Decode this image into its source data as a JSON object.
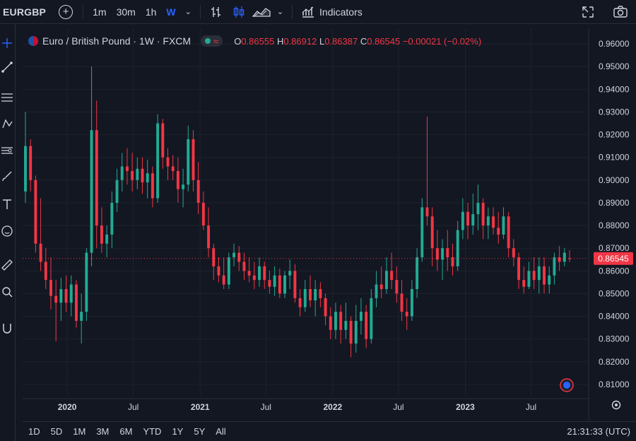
{
  "toolbar": {
    "symbol": "EURGBP",
    "timeframes": [
      "1m",
      "30m",
      "1h",
      "W"
    ],
    "active_timeframe": "W",
    "indicators_label": "Indicators",
    "icons": [
      "add-symbol-icon",
      "bar-style-icon",
      "candles-icon",
      "area-icon",
      "indicators-icon",
      "snapshot-icon",
      "camera-icon"
    ]
  },
  "left_toolbar": {
    "icons": [
      "crosshair-icon",
      "trendline-icon",
      "fib-icon",
      "pattern-icon",
      "forecast-icon",
      "brush-icon",
      "text-icon",
      "emoji-icon",
      "ruler-icon",
      "zoom-icon",
      "magnet-icon"
    ]
  },
  "legend": {
    "title": "Euro / British Pound · 1W · FXCM",
    "o_label": "O",
    "o": "0.86555",
    "h_label": "H",
    "h": "0.86912",
    "l_label": "L",
    "l": "0.86387",
    "c_label": "C",
    "c": "0.86545",
    "change": "−0.00021 (−0.02%)"
  },
  "bottom": {
    "ranges": [
      "1D",
      "5D",
      "1M",
      "3M",
      "6M",
      "YTD",
      "1Y",
      "5Y",
      "All"
    ],
    "clock": "21:31:33 (UTC)"
  },
  "colors": {
    "background": "#131722",
    "up": "#22ab94",
    "down": "#f23645",
    "grid": "#1e222d",
    "text": "#d1d4dc"
  },
  "chart_data": {
    "type": "candlestick",
    "ylim": [
      0.805,
      0.965
    ],
    "y_ticks": [
      0.81,
      0.82,
      0.83,
      0.84,
      0.85,
      0.86,
      0.87,
      0.88,
      0.89,
      0.9,
      0.91,
      0.92,
      0.93,
      0.94,
      0.95,
      0.96
    ],
    "y_tick_labels": [
      "0.81000",
      "0.82000",
      "0.83000",
      "0.84000",
      "0.85000",
      "0.86000",
      "0.87000",
      "0.88000",
      "0.89000",
      "0.90000",
      "0.91000",
      "0.92000",
      "0.93000",
      "0.94000",
      "0.95000",
      "0.96000"
    ],
    "x_range": [
      "2019-09-08",
      "2023-10-15"
    ],
    "x_ticks": [
      {
        "label": "2020",
        "date": "2020-01-01"
      },
      {
        "label": "Jul",
        "date": "2020-07-01"
      },
      {
        "label": "2021",
        "date": "2021-01-01"
      },
      {
        "label": "Jul",
        "date": "2021-07-01"
      },
      {
        "label": "2022",
        "date": "2022-01-01"
      },
      {
        "label": "Jul",
        "date": "2022-07-01"
      },
      {
        "label": "2023",
        "date": "2023-01-01"
      },
      {
        "label": "Jul",
        "date": "2023-07-01"
      }
    ],
    "last_price": 0.86545,
    "last_price_label": "0.86545",
    "candles": [
      {
        "d": "2019-09-08",
        "o": 0.895,
        "h": 0.93,
        "l": 0.89,
        "c": 0.915
      },
      {
        "d": "2019-09-22",
        "o": 0.915,
        "h": 0.918,
        "l": 0.895,
        "c": 0.9
      },
      {
        "d": "2019-10-06",
        "o": 0.9,
        "h": 0.902,
        "l": 0.868,
        "c": 0.872
      },
      {
        "d": "2019-10-20",
        "o": 0.872,
        "h": 0.892,
        "l": 0.86,
        "c": 0.864
      },
      {
        "d": "2019-11-03",
        "o": 0.864,
        "h": 0.87,
        "l": 0.852,
        "c": 0.856
      },
      {
        "d": "2019-11-17",
        "o": 0.856,
        "h": 0.866,
        "l": 0.843,
        "c": 0.849
      },
      {
        "d": "2019-12-01",
        "o": 0.849,
        "h": 0.856,
        "l": 0.829,
        "c": 0.846
      },
      {
        "d": "2019-12-15",
        "o": 0.846,
        "h": 0.857,
        "l": 0.838,
        "c": 0.852
      },
      {
        "d": "2019-12-29",
        "o": 0.852,
        "h": 0.858,
        "l": 0.842,
        "c": 0.846
      },
      {
        "d": "2020-01-12",
        "o": 0.846,
        "h": 0.858,
        "l": 0.84,
        "c": 0.854
      },
      {
        "d": "2020-01-26",
        "o": 0.854,
        "h": 0.856,
        "l": 0.835,
        "c": 0.838
      },
      {
        "d": "2020-02-09",
        "o": 0.838,
        "h": 0.85,
        "l": 0.828,
        "c": 0.842
      },
      {
        "d": "2020-02-23",
        "o": 0.842,
        "h": 0.87,
        "l": 0.838,
        "c": 0.868
      },
      {
        "d": "2020-03-08",
        "o": 0.868,
        "h": 0.95,
        "l": 0.862,
        "c": 0.922
      },
      {
        "d": "2020-03-22",
        "o": 0.922,
        "h": 0.935,
        "l": 0.87,
        "c": 0.88
      },
      {
        "d": "2020-04-05",
        "o": 0.88,
        "h": 0.888,
        "l": 0.868,
        "c": 0.872
      },
      {
        "d": "2020-04-19",
        "o": 0.872,
        "h": 0.88,
        "l": 0.866,
        "c": 0.876
      },
      {
        "d": "2020-05-03",
        "o": 0.876,
        "h": 0.895,
        "l": 0.87,
        "c": 0.89
      },
      {
        "d": "2020-05-17",
        "o": 0.89,
        "h": 0.905,
        "l": 0.886,
        "c": 0.9
      },
      {
        "d": "2020-05-31",
        "o": 0.9,
        "h": 0.912,
        "l": 0.895,
        "c": 0.906
      },
      {
        "d": "2020-06-14",
        "o": 0.906,
        "h": 0.914,
        "l": 0.898,
        "c": 0.904
      },
      {
        "d": "2020-06-28",
        "o": 0.904,
        "h": 0.912,
        "l": 0.895,
        "c": 0.9
      },
      {
        "d": "2020-07-12",
        "o": 0.9,
        "h": 0.91,
        "l": 0.896,
        "c": 0.905
      },
      {
        "d": "2020-07-26",
        "o": 0.905,
        "h": 0.91,
        "l": 0.894,
        "c": 0.899
      },
      {
        "d": "2020-08-09",
        "o": 0.899,
        "h": 0.909,
        "l": 0.892,
        "c": 0.903
      },
      {
        "d": "2020-08-23",
        "o": 0.903,
        "h": 0.906,
        "l": 0.888,
        "c": 0.892
      },
      {
        "d": "2020-09-06",
        "o": 0.892,
        "h": 0.929,
        "l": 0.89,
        "c": 0.925
      },
      {
        "d": "2020-09-20",
        "o": 0.925,
        "h": 0.927,
        "l": 0.905,
        "c": 0.91
      },
      {
        "d": "2020-10-04",
        "o": 0.91,
        "h": 0.914,
        "l": 0.9,
        "c": 0.906
      },
      {
        "d": "2020-10-18",
        "o": 0.906,
        "h": 0.911,
        "l": 0.9,
        "c": 0.904
      },
      {
        "d": "2020-11-01",
        "o": 0.904,
        "h": 0.91,
        "l": 0.89,
        "c": 0.896
      },
      {
        "d": "2020-11-15",
        "o": 0.896,
        "h": 0.905,
        "l": 0.888,
        "c": 0.898
      },
      {
        "d": "2020-11-29",
        "o": 0.898,
        "h": 0.924,
        "l": 0.895,
        "c": 0.918
      },
      {
        "d": "2020-12-13",
        "o": 0.918,
        "h": 0.922,
        "l": 0.895,
        "c": 0.9
      },
      {
        "d": "2020-12-27",
        "o": 0.9,
        "h": 0.908,
        "l": 0.885,
        "c": 0.89
      },
      {
        "d": "2021-01-10",
        "o": 0.89,
        "h": 0.895,
        "l": 0.878,
        "c": 0.88
      },
      {
        "d": "2021-01-24",
        "o": 0.88,
        "h": 0.888,
        "l": 0.866,
        "c": 0.87
      },
      {
        "d": "2021-02-07",
        "o": 0.87,
        "h": 0.872,
        "l": 0.856,
        "c": 0.862
      },
      {
        "d": "2021-02-21",
        "o": 0.862,
        "h": 0.866,
        "l": 0.855,
        "c": 0.858
      },
      {
        "d": "2021-03-07",
        "o": 0.858,
        "h": 0.866,
        "l": 0.852,
        "c": 0.854
      },
      {
        "d": "2021-03-21",
        "o": 0.854,
        "h": 0.868,
        "l": 0.852,
        "c": 0.866
      },
      {
        "d": "2021-04-04",
        "o": 0.866,
        "h": 0.872,
        "l": 0.862,
        "c": 0.868
      },
      {
        "d": "2021-04-18",
        "o": 0.868,
        "h": 0.871,
        "l": 0.86,
        "c": 0.864
      },
      {
        "d": "2021-05-02",
        "o": 0.864,
        "h": 0.868,
        "l": 0.856,
        "c": 0.86
      },
      {
        "d": "2021-05-16",
        "o": 0.86,
        "h": 0.866,
        "l": 0.855,
        "c": 0.858
      },
      {
        "d": "2021-05-30",
        "o": 0.858,
        "h": 0.864,
        "l": 0.852,
        "c": 0.856
      },
      {
        "d": "2021-06-13",
        "o": 0.856,
        "h": 0.866,
        "l": 0.853,
        "c": 0.862
      },
      {
        "d": "2021-06-27",
        "o": 0.862,
        "h": 0.864,
        "l": 0.852,
        "c": 0.856
      },
      {
        "d": "2021-07-11",
        "o": 0.856,
        "h": 0.86,
        "l": 0.85,
        "c": 0.853
      },
      {
        "d": "2021-07-25",
        "o": 0.853,
        "h": 0.862,
        "l": 0.849,
        "c": 0.858
      },
      {
        "d": "2021-08-08",
        "o": 0.858,
        "h": 0.861,
        "l": 0.848,
        "c": 0.85
      },
      {
        "d": "2021-08-22",
        "o": 0.85,
        "h": 0.86,
        "l": 0.848,
        "c": 0.858
      },
      {
        "d": "2021-09-05",
        "o": 0.858,
        "h": 0.865,
        "l": 0.852,
        "c": 0.86
      },
      {
        "d": "2021-09-19",
        "o": 0.86,
        "h": 0.863,
        "l": 0.846,
        "c": 0.848
      },
      {
        "d": "2021-10-03",
        "o": 0.848,
        "h": 0.852,
        "l": 0.84,
        "c": 0.844
      },
      {
        "d": "2021-10-17",
        "o": 0.844,
        "h": 0.856,
        "l": 0.842,
        "c": 0.852
      },
      {
        "d": "2021-10-31",
        "o": 0.852,
        "h": 0.858,
        "l": 0.844,
        "c": 0.847
      },
      {
        "d": "2021-11-14",
        "o": 0.847,
        "h": 0.856,
        "l": 0.84,
        "c": 0.852
      },
      {
        "d": "2021-11-28",
        "o": 0.852,
        "h": 0.855,
        "l": 0.844,
        "c": 0.848
      },
      {
        "d": "2021-12-12",
        "o": 0.848,
        "h": 0.85,
        "l": 0.836,
        "c": 0.84
      },
      {
        "d": "2021-12-26",
        "o": 0.84,
        "h": 0.844,
        "l": 0.83,
        "c": 0.834
      },
      {
        "d": "2022-01-09",
        "o": 0.834,
        "h": 0.846,
        "l": 0.83,
        "c": 0.842
      },
      {
        "d": "2022-01-23",
        "o": 0.842,
        "h": 0.845,
        "l": 0.828,
        "c": 0.834
      },
      {
        "d": "2022-02-06",
        "o": 0.834,
        "h": 0.846,
        "l": 0.83,
        "c": 0.838
      },
      {
        "d": "2022-02-20",
        "o": 0.838,
        "h": 0.84,
        "l": 0.822,
        "c": 0.828
      },
      {
        "d": "2022-03-06",
        "o": 0.828,
        "h": 0.845,
        "l": 0.824,
        "c": 0.838
      },
      {
        "d": "2022-03-20",
        "o": 0.838,
        "h": 0.848,
        "l": 0.832,
        "c": 0.842
      },
      {
        "d": "2022-04-03",
        "o": 0.842,
        "h": 0.845,
        "l": 0.826,
        "c": 0.83
      },
      {
        "d": "2022-04-17",
        "o": 0.83,
        "h": 0.852,
        "l": 0.828,
        "c": 0.848
      },
      {
        "d": "2022-05-01",
        "o": 0.848,
        "h": 0.86,
        "l": 0.844,
        "c": 0.854
      },
      {
        "d": "2022-05-15",
        "o": 0.854,
        "h": 0.862,
        "l": 0.848,
        "c": 0.852
      },
      {
        "d": "2022-05-29",
        "o": 0.852,
        "h": 0.866,
        "l": 0.85,
        "c": 0.86
      },
      {
        "d": "2022-06-12",
        "o": 0.86,
        "h": 0.868,
        "l": 0.852,
        "c": 0.856
      },
      {
        "d": "2022-06-26",
        "o": 0.856,
        "h": 0.862,
        "l": 0.846,
        "c": 0.85
      },
      {
        "d": "2022-07-10",
        "o": 0.85,
        "h": 0.856,
        "l": 0.838,
        "c": 0.842
      },
      {
        "d": "2022-07-24",
        "o": 0.842,
        "h": 0.848,
        "l": 0.834,
        "c": 0.84
      },
      {
        "d": "2022-08-07",
        "o": 0.84,
        "h": 0.856,
        "l": 0.838,
        "c": 0.852
      },
      {
        "d": "2022-08-21",
        "o": 0.852,
        "h": 0.87,
        "l": 0.848,
        "c": 0.866
      },
      {
        "d": "2022-09-04",
        "o": 0.866,
        "h": 0.892,
        "l": 0.864,
        "c": 0.888
      },
      {
        "d": "2022-09-18",
        "o": 0.888,
        "h": 0.928,
        "l": 0.88,
        "c": 0.884
      },
      {
        "d": "2022-10-02",
        "o": 0.884,
        "h": 0.888,
        "l": 0.862,
        "c": 0.87
      },
      {
        "d": "2022-10-16",
        "o": 0.87,
        "h": 0.878,
        "l": 0.86,
        "c": 0.865
      },
      {
        "d": "2022-10-30",
        "o": 0.865,
        "h": 0.874,
        "l": 0.856,
        "c": 0.87
      },
      {
        "d": "2022-11-13",
        "o": 0.87,
        "h": 0.878,
        "l": 0.86,
        "c": 0.866
      },
      {
        "d": "2022-11-27",
        "o": 0.866,
        "h": 0.872,
        "l": 0.858,
        "c": 0.862
      },
      {
        "d": "2022-12-11",
        "o": 0.862,
        "h": 0.882,
        "l": 0.86,
        "c": 0.878
      },
      {
        "d": "2022-12-25",
        "o": 0.878,
        "h": 0.892,
        "l": 0.874,
        "c": 0.886
      },
      {
        "d": "2023-01-08",
        "o": 0.886,
        "h": 0.89,
        "l": 0.874,
        "c": 0.88
      },
      {
        "d": "2023-01-22",
        "o": 0.88,
        "h": 0.894,
        "l": 0.876,
        "c": 0.885
      },
      {
        "d": "2023-02-05",
        "o": 0.885,
        "h": 0.898,
        "l": 0.878,
        "c": 0.89
      },
      {
        "d": "2023-02-19",
        "o": 0.89,
        "h": 0.892,
        "l": 0.874,
        "c": 0.88
      },
      {
        "d": "2023-03-05",
        "o": 0.88,
        "h": 0.888,
        "l": 0.874,
        "c": 0.884
      },
      {
        "d": "2023-03-19",
        "o": 0.884,
        "h": 0.888,
        "l": 0.876,
        "c": 0.879
      },
      {
        "d": "2023-04-02",
        "o": 0.879,
        "h": 0.886,
        "l": 0.872,
        "c": 0.876
      },
      {
        "d": "2023-04-16",
        "o": 0.876,
        "h": 0.888,
        "l": 0.874,
        "c": 0.884
      },
      {
        "d": "2023-04-30",
        "o": 0.884,
        "h": 0.886,
        "l": 0.866,
        "c": 0.87
      },
      {
        "d": "2023-05-14",
        "o": 0.87,
        "h": 0.874,
        "l": 0.862,
        "c": 0.866
      },
      {
        "d": "2023-05-28",
        "o": 0.866,
        "h": 0.868,
        "l": 0.852,
        "c": 0.856
      },
      {
        "d": "2023-06-11",
        "o": 0.856,
        "h": 0.862,
        "l": 0.85,
        "c": 0.853
      },
      {
        "d": "2023-06-25",
        "o": 0.853,
        "h": 0.864,
        "l": 0.852,
        "c": 0.86
      },
      {
        "d": "2023-07-09",
        "o": 0.86,
        "h": 0.866,
        "l": 0.852,
        "c": 0.856
      },
      {
        "d": "2023-07-23",
        "o": 0.856,
        "h": 0.866,
        "l": 0.85,
        "c": 0.862
      },
      {
        "d": "2023-08-06",
        "o": 0.862,
        "h": 0.866,
        "l": 0.85,
        "c": 0.854
      },
      {
        "d": "2023-08-20",
        "o": 0.854,
        "h": 0.862,
        "l": 0.85,
        "c": 0.858
      },
      {
        "d": "2023-09-03",
        "o": 0.858,
        "h": 0.868,
        "l": 0.854,
        "c": 0.866
      },
      {
        "d": "2023-09-17",
        "o": 0.866,
        "h": 0.871,
        "l": 0.86,
        "c": 0.864
      },
      {
        "d": "2023-10-01",
        "o": 0.864,
        "h": 0.87,
        "l": 0.862,
        "c": 0.868
      },
      {
        "d": "2023-10-15",
        "o": 0.86555,
        "h": 0.86912,
        "l": 0.86387,
        "c": 0.86545
      }
    ]
  }
}
